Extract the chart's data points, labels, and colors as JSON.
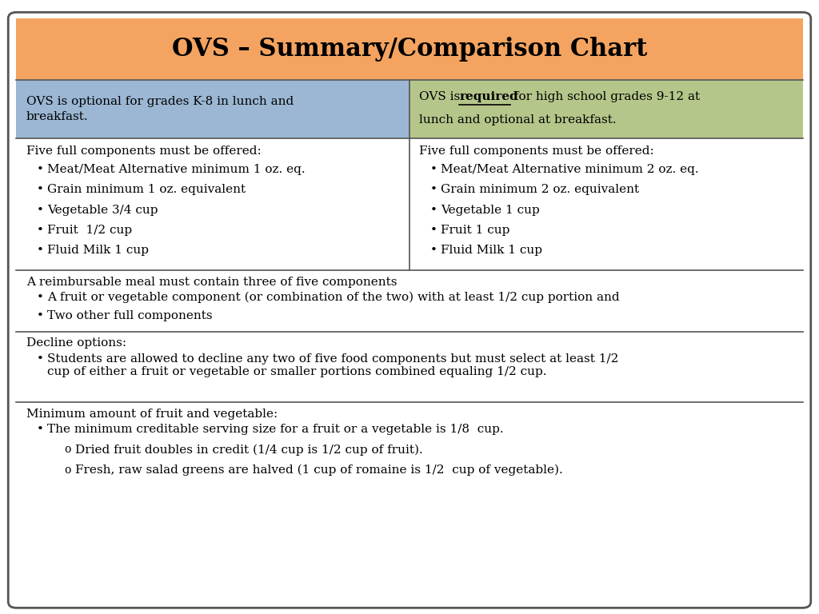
{
  "title": "OVS – Summary/Comparison Chart",
  "title_bg": "#F4A460",
  "title_color": "#000000",
  "col1_header_bg": "#9BB7D4",
  "col2_header_bg": "#B5C68A",
  "col1_header_text": "OVS is optional for grades K-8 in lunch and\nbreakfast.",
  "col2_header_text_plain": "OVS is ",
  "col2_header_bold_underline": "required",
  "col2_header_text_rest": " for high school grades 9-12 at",
  "col2_header_line2": "lunch and optional at breakfast.",
  "col1_components_header": "Five full components must be offered:",
  "col1_components_bullets": [
    "Meat/Meat Alternative minimum 1 oz. eq.",
    "Grain minimum 1 oz. equivalent",
    "Vegetable 3/4 cup",
    "Fruit  1/2 cup",
    "Fluid Milk 1 cup"
  ],
  "col2_components_header": "Five full components must be offered:",
  "col2_components_bullets": [
    "Meat/Meat Alternative minimum 2 oz. eq.",
    "Grain minimum 2 oz. equivalent",
    "Vegetable 1 cup",
    "Fruit 1 cup",
    "Fluid Milk 1 cup"
  ],
  "row3_header": "A reimbursable meal must contain three of five components",
  "row3_bullets": [
    "A fruit or vegetable component (or combination of the two) with at least 1/2 cup portion and",
    "Two other full components"
  ],
  "row4_header": "Decline options:",
  "row4_bullets": [
    "Students are allowed to decline any two of five food components but must select at least 1/2\ncup of either a fruit or vegetable or smaller portions combined equaling 1/2 cup."
  ],
  "row5_header": "Minimum amount of fruit and vegetable:",
  "row5_bullets": [
    "The minimum creditable serving size for a fruit or a vegetable is 1/8  cup."
  ],
  "row5_sub_bullets": [
    "Dried fruit doubles in credit (1/4 cup is 1/2 cup of fruit).",
    "Fresh, raw salad greens are halved (1 cup of romaine is 1/2  cup of vegetable)."
  ],
  "bg_color": "#FFFFFF",
  "border_color": "#555555",
  "text_color": "#000000",
  "font_size": 11,
  "title_font_size": 22
}
